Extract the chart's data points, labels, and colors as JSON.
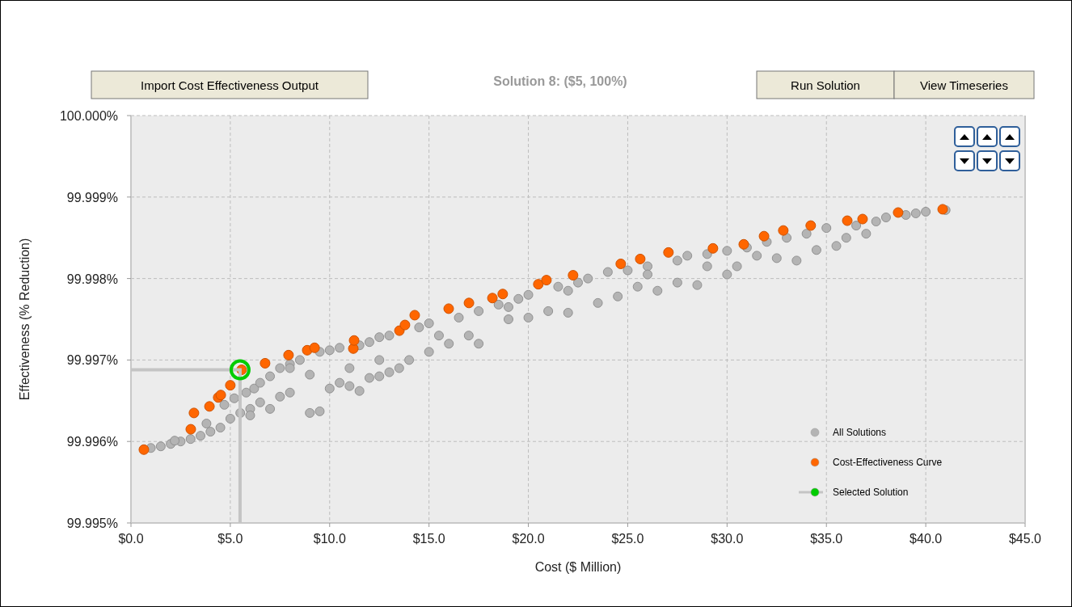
{
  "chart_data": {
    "type": "scatter",
    "title": "Solution 8: ($5, 100%)",
    "xlabel": "Cost ($ Million)",
    "ylabel": "Effectiveness (% Reduction)",
    "annotations": [
      "Import Cost Effectiveness Output",
      "Run Solution",
      "View Timeseries"
    ],
    "xlim": [
      0,
      45
    ],
    "xticks": [
      {
        "value": 0,
        "label": "$0.0"
      },
      {
        "value": 5,
        "label": "$5.0"
      },
      {
        "value": 10,
        "label": "$10.0"
      },
      {
        "value": 15,
        "label": "$15.0"
      },
      {
        "value": 20,
        "label": "$20.0"
      },
      {
        "value": 25,
        "label": "$25.0"
      },
      {
        "value": 30,
        "label": "$30.0"
      },
      {
        "value": 35,
        "label": "$35.0"
      },
      {
        "value": 40,
        "label": "$40.0"
      },
      {
        "value": 45,
        "label": "$45.0"
      }
    ],
    "ylim": [
      99.995,
      100
    ],
    "yticks": [
      {
        "value": 99.995,
        "label": "99.995%"
      },
      {
        "value": 99.996,
        "label": "99.996%"
      },
      {
        "value": 99.997,
        "label": "99.997%"
      },
      {
        "value": 99.998,
        "label": "99.998%"
      },
      {
        "value": 99.999,
        "label": "99.999%"
      },
      {
        "value": 100,
        "label": "100.000%"
      }
    ],
    "grid": true,
    "legend": "bottom right",
    "marker": "circle",
    "series": [
      {
        "name": "All Solutions",
        "color": "#b4b4b4",
        "x": [
          1.0,
          1.5,
          2.0,
          2.5,
          3.0,
          3.5,
          2.2,
          4.0,
          4.5,
          3.8,
          5.0,
          5.5,
          6.0,
          4.7,
          5.2,
          5.8,
          6.2,
          6.5,
          7.0,
          7.5,
          8.0,
          8.5,
          9.5,
          10.0,
          10.5,
          11.5,
          12.0,
          12.5,
          13.0,
          14.5,
          15.0,
          16.5,
          17.5,
          18.5,
          19.5,
          20.0,
          21.5,
          22.5,
          23.0,
          24.0,
          25.0,
          26.0,
          27.5,
          28.0,
          29.0,
          30.0,
          31.0,
          32.0,
          33.0,
          34.0,
          35.0,
          36.5,
          37.5,
          38.0,
          39.0,
          39.5,
          40.0,
          41.0,
          6.0,
          7.0,
          7.5,
          8.0,
          9.0,
          9.5,
          10.0,
          10.5,
          11.0,
          11.5,
          12.0,
          12.5,
          13.0,
          13.5,
          11.0,
          9.0,
          14.0,
          15.0,
          16.0,
          17.5,
          17.0,
          19.0,
          20.0,
          21.0,
          22.0,
          23.5,
          24.5,
          25.5,
          26.5,
          27.5,
          28.5,
          30.0,
          30.5,
          32.5,
          33.5,
          34.5,
          35.5,
          36.0,
          37.0,
          8.0,
          6.5,
          12.5,
          15.5,
          19.0,
          22.0,
          26.0,
          29.0,
          31.5
        ],
        "values": [
          99.99592,
          99.99594,
          99.99597,
          99.996,
          99.99603,
          99.99607,
          99.99601,
          99.99612,
          99.99617,
          99.99622,
          99.99628,
          99.99635,
          99.9964,
          99.99645,
          99.99653,
          99.9966,
          99.99665,
          99.99672,
          99.9968,
          99.9969,
          99.99695,
          99.997,
          99.9971,
          99.99712,
          99.99715,
          99.99718,
          99.99722,
          99.99728,
          99.9973,
          99.9974,
          99.99745,
          99.99752,
          99.9976,
          99.99768,
          99.99775,
          99.9978,
          99.9979,
          99.99795,
          99.998,
          99.99808,
          99.9981,
          99.99815,
          99.99822,
          99.99828,
          99.9983,
          99.99834,
          99.99838,
          99.99845,
          99.9985,
          99.99855,
          99.99862,
          99.99865,
          99.9987,
          99.99875,
          99.99878,
          99.9988,
          99.99882,
          99.99884,
          99.99632,
          99.9964,
          99.99655,
          99.9966,
          99.99635,
          99.99637,
          99.99665,
          99.99672,
          99.99668,
          99.99662,
          99.99678,
          99.9968,
          99.99685,
          99.9969,
          99.9969,
          99.99682,
          99.997,
          99.9971,
          99.9972,
          99.9972,
          99.9973,
          99.9975,
          99.99752,
          99.9976,
          99.99758,
          99.9977,
          99.99778,
          99.9979,
          99.99785,
          99.99795,
          99.99792,
          99.99805,
          99.99815,
          99.99825,
          99.99822,
          99.99835,
          99.9984,
          99.9985,
          99.99855,
          99.9969,
          99.99648,
          99.997,
          99.9973,
          99.99765,
          99.99785,
          99.99805,
          99.99815,
          99.99828
        ]
      },
      {
        "name": "Cost-Effectiveness Curve",
        "color": "#ff6600",
        "x": [
          0.65,
          3.01,
          3.17,
          3.95,
          4.39,
          4.52,
          5.0,
          5.57,
          6.75,
          7.93,
          8.87,
          9.24,
          11.19,
          11.23,
          13.51,
          13.79,
          14.28,
          15.99,
          17.01,
          18.19,
          18.71,
          20.5,
          20.91,
          22.25,
          24.65,
          25.63,
          27.05,
          29.29,
          30.84,
          31.86,
          32.83,
          34.21,
          36.05,
          36.82,
          38.61,
          40.85
        ],
        "values": [
          99.9959,
          99.99615,
          99.99635,
          99.99643,
          99.99654,
          99.99657,
          99.99669,
          99.99688,
          99.99696,
          99.99706,
          99.99712,
          99.99715,
          99.99714,
          99.99724,
          99.99736,
          99.99743,
          99.99755,
          99.99763,
          99.9977,
          99.99776,
          99.99781,
          99.99793,
          99.99798,
          99.99804,
          99.99818,
          99.99824,
          99.99832,
          99.99837,
          99.99842,
          99.99852,
          99.99859,
          99.99865,
          99.99871,
          99.99873,
          99.99881,
          99.99885
        ]
      },
      {
        "name": "Selected Solution",
        "color": "#00cc00",
        "x": [
          5.49
        ],
        "values": [
          99.99688
        ]
      }
    ]
  }
}
